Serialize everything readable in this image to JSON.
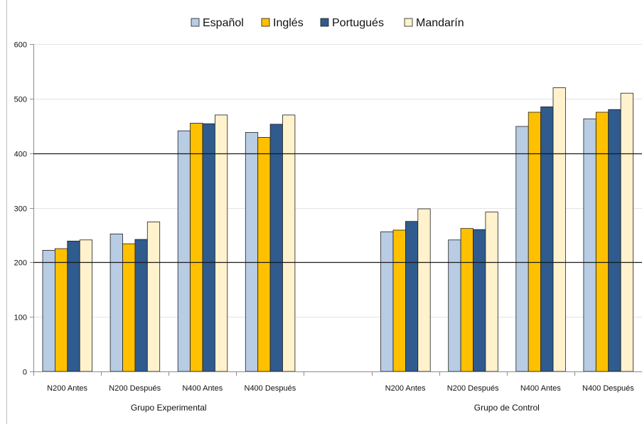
{
  "chart_data": {
    "type": "bar",
    "ylim": [
      0,
      600
    ],
    "yticks": [
      "0",
      "100",
      "200",
      "300",
      "400",
      "500",
      "600"
    ],
    "grid": true,
    "legend_position": "top-center",
    "reference_lines": [
      400,
      200
    ],
    "series": [
      {
        "name": "Español",
        "color": "#b8cce4",
        "values": [
          222,
          252,
          441,
          438,
          null,
          256,
          241,
          449,
          463
        ]
      },
      {
        "name": "Inglés",
        "color": "#ffc000",
        "values": [
          225,
          234,
          455,
          429,
          null,
          259,
          262,
          475,
          475
        ]
      },
      {
        "name": "Portugués",
        "color": "#2f5b8f",
        "values": [
          239,
          242,
          454,
          453,
          null,
          275,
          260,
          485,
          480
        ]
      },
      {
        "name": "Mandarín",
        "color": "#fff2cc",
        "values": [
          241,
          274,
          470,
          470,
          null,
          298,
          292,
          520,
          510
        ]
      }
    ],
    "categories": [
      "N200 Antes",
      "N200 Después",
      "N400 Antes",
      "N400 Después",
      "",
      "N200 Antes",
      "N200 Después",
      "N400 Antes",
      "N400 Después"
    ],
    "groups": [
      {
        "label": "Grupo Experimental",
        "start": 0,
        "end": 3
      },
      {
        "label": "Grupo de Control",
        "start": 5,
        "end": 8
      }
    ]
  }
}
